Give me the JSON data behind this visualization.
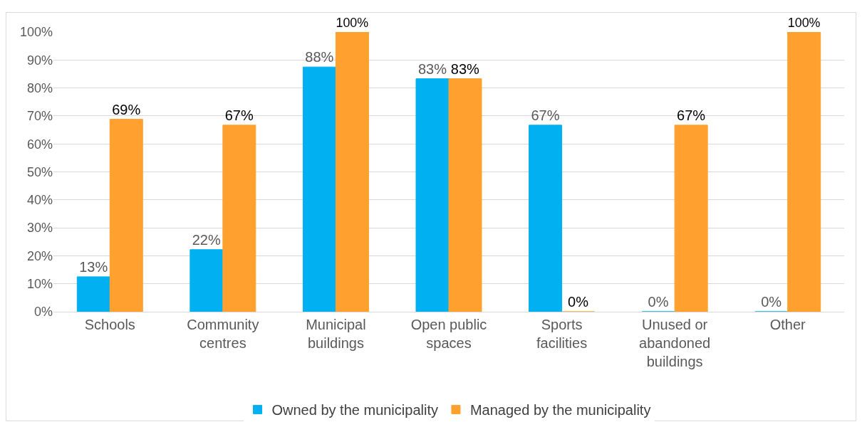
{
  "chart_data": {
    "type": "bar",
    "categories": [
      "Schools",
      "Community centres",
      "Municipal buildings",
      "Open public spaces",
      "Sports facilities",
      "Unused or abandoned buildings",
      "Other"
    ],
    "series": [
      {
        "name": "Owned by the municipality",
        "color": "#00b0f0",
        "values": [
          12.5,
          22.2,
          87.5,
          83.3,
          66.7,
          0,
          0
        ],
        "value_labels": [
          "13%",
          "22%",
          "88%",
          "83%",
          "67%",
          "0%",
          "0%"
        ]
      },
      {
        "name": "Managed by the municipality",
        "color": "#ffa02f",
        "values": [
          68.8,
          66.7,
          100,
          83.3,
          0,
          66.7,
          100
        ],
        "value_labels": [
          "69%",
          "67%",
          "100%",
          "83%",
          "0%",
          "67%",
          "100%"
        ]
      }
    ],
    "ylim": [
      0,
      100
    ],
    "yticks": [
      {
        "value": 0,
        "label": "0%"
      },
      {
        "value": 10,
        "label": "10%"
      },
      {
        "value": 20,
        "label": "20%"
      },
      {
        "value": 30,
        "label": "30%"
      },
      {
        "value": 40,
        "label": "40%"
      },
      {
        "value": 50,
        "label": "50%"
      },
      {
        "value": 60,
        "label": "60%"
      },
      {
        "value": 70,
        "label": "70%"
      },
      {
        "value": 80,
        "label": "80%"
      },
      {
        "value": 90,
        "label": "90%"
      },
      {
        "value": 100,
        "label": "100%"
      }
    ],
    "grid": "y",
    "legend": "bottom"
  }
}
